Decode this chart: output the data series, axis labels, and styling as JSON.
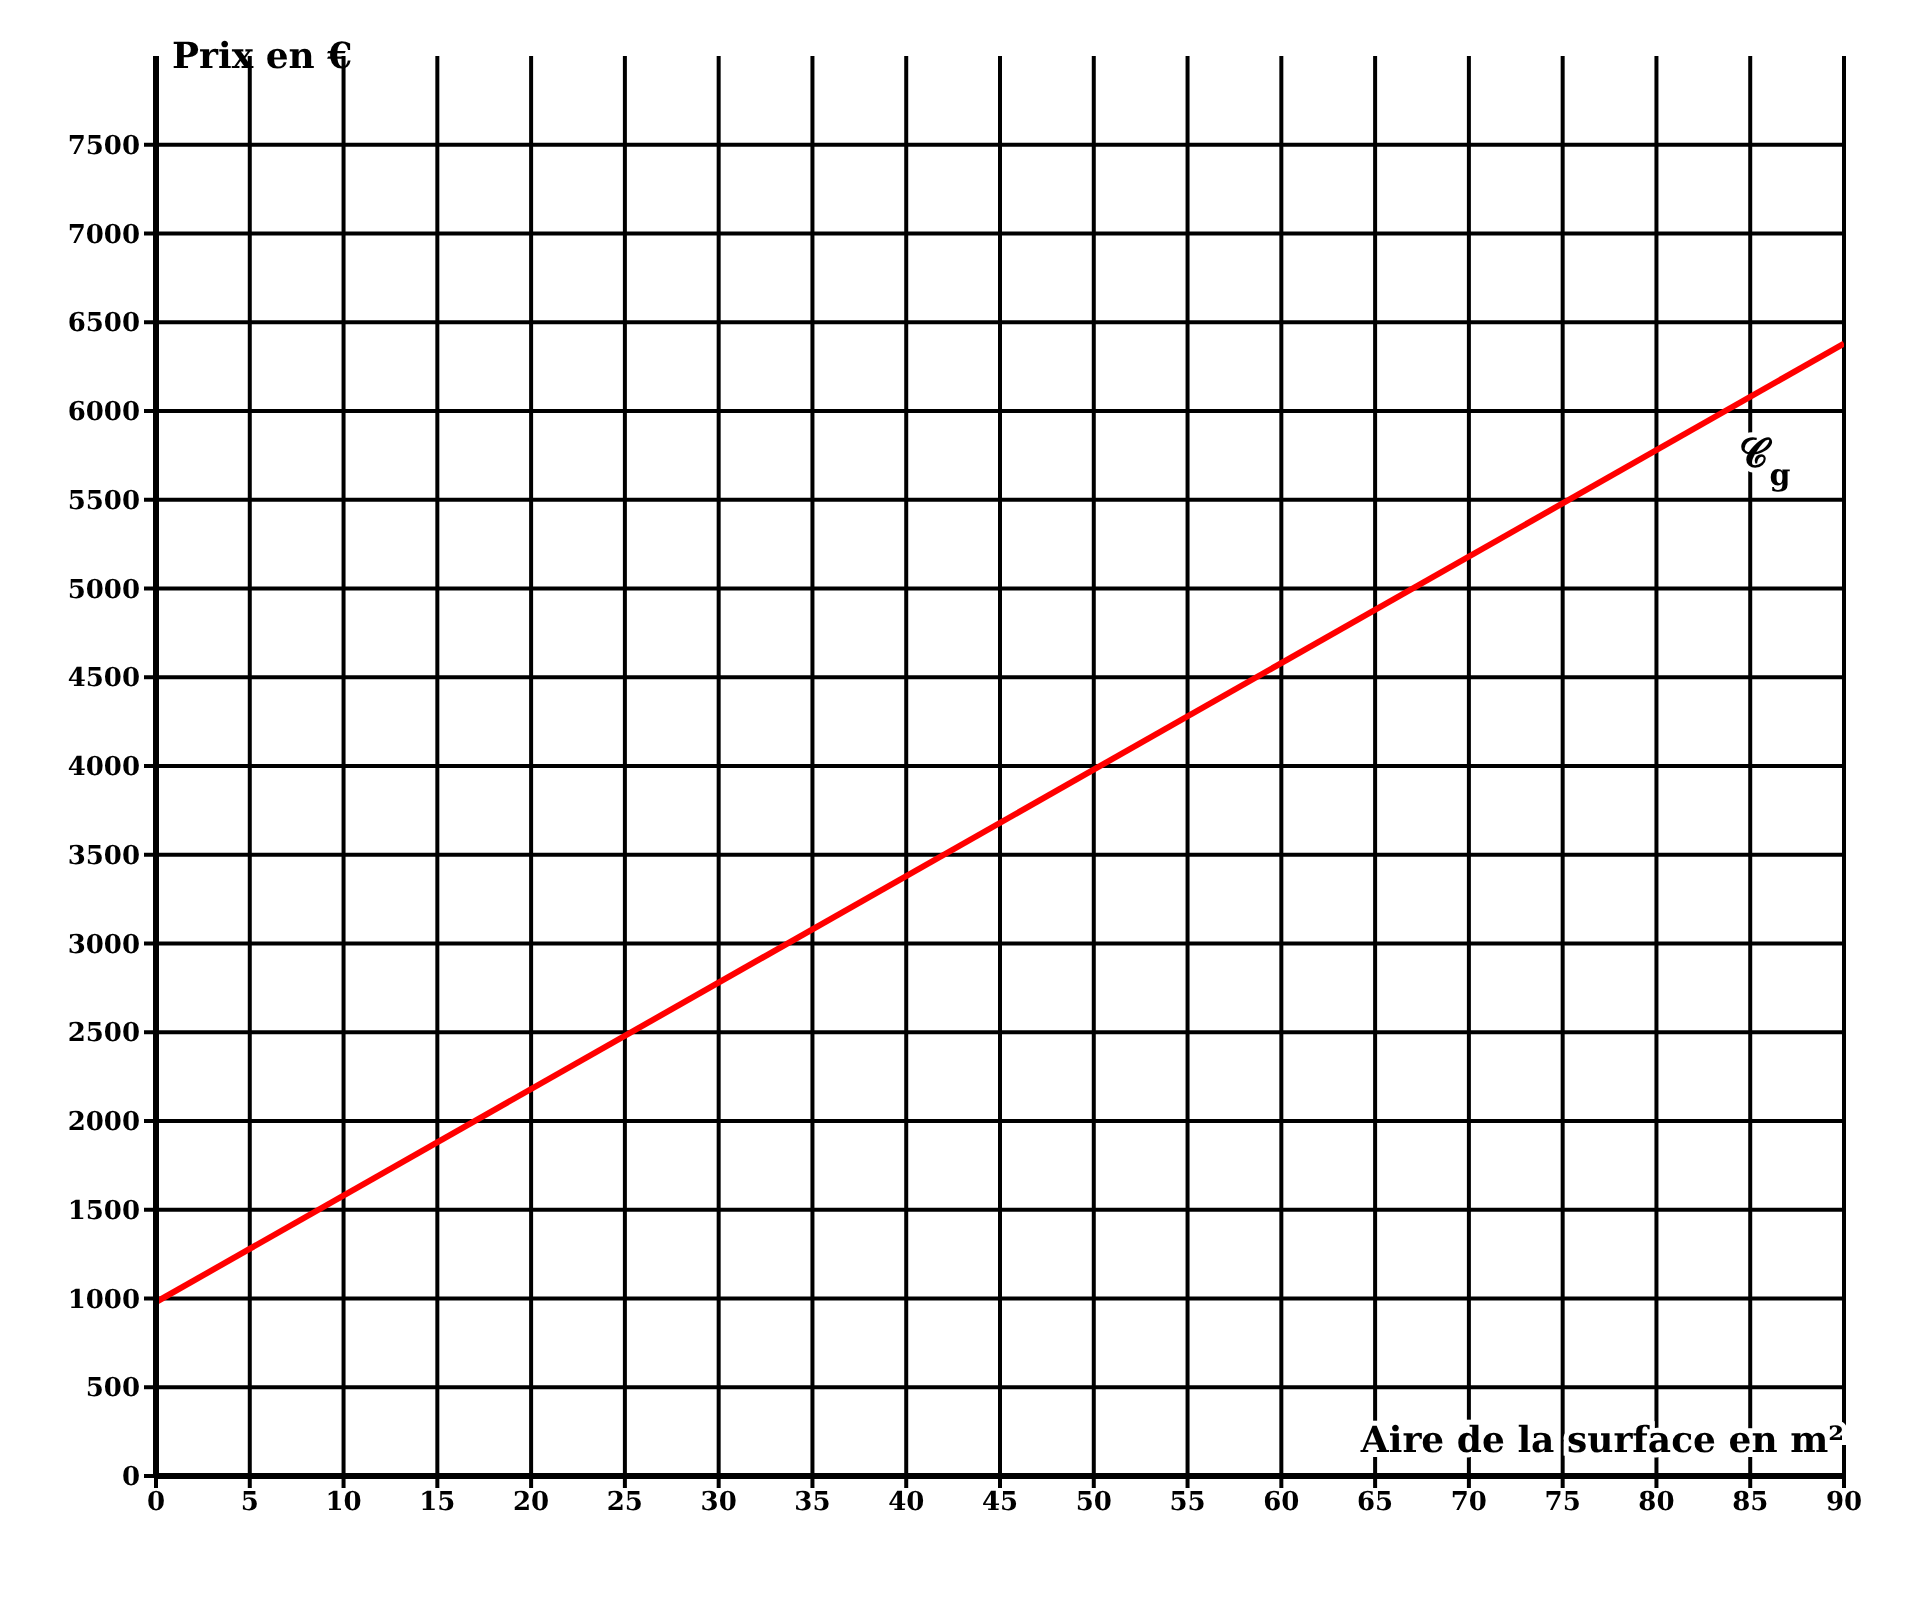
{
  "chart_data": {
    "type": "line",
    "xlabel": "Aire de la surface en m²",
    "ylabel": "Prix en €",
    "x": [
      0,
      90
    ],
    "series": [
      {
        "color": "#ff0000",
        "values": [
          980,
          6380
        ]
      }
    ],
    "xlim": [
      0,
      90
    ],
    "xticks": [
      0,
      5,
      10,
      15,
      20,
      25,
      30,
      35,
      40,
      45,
      50,
      55,
      60,
      65,
      70,
      75,
      80,
      85,
      90
    ],
    "ylim": [
      0,
      8000
    ],
    "yticks": [
      0,
      500,
      1000,
      1500,
      2000,
      2500,
      3000,
      3500,
      4000,
      4500,
      5000,
      5500,
      6000,
      6500,
      7000,
      7500
    ],
    "grid": true,
    "marker": "none",
    "line_style": "solid",
    "annotations": [
      {
        "text": "𝒞$_{g}$",
        "x": 84,
        "y": 6020
      }
    ]
  }
}
